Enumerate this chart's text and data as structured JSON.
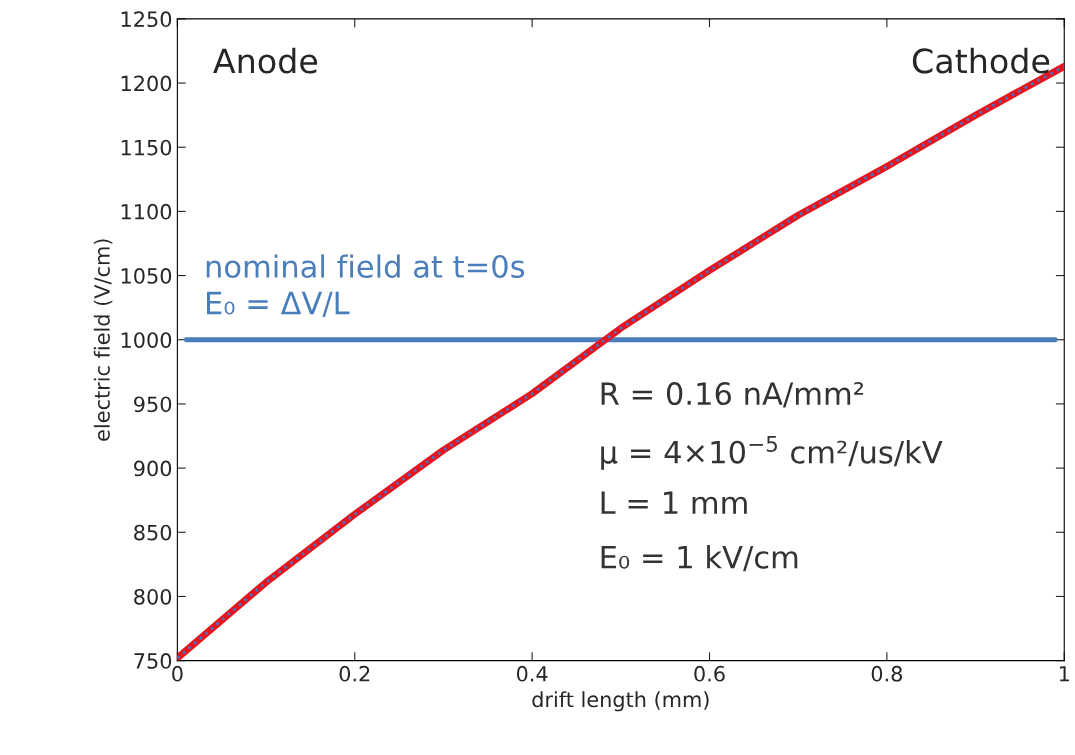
{
  "chart_data": {
    "type": "line",
    "xlabel": "drift length (mm)",
    "ylabel": "electric field (V/cm)",
    "x": [
      0,
      0.1,
      0.2,
      0.3,
      0.4,
      0.5,
      0.6,
      0.7,
      0.8,
      0.9,
      1.0
    ],
    "series": [
      {
        "color": "#e8141b",
        "line_style": "solid",
        "values": [
          752,
          811,
          864,
          914,
          958,
          1009,
          1054,
          1097,
          1135,
          1175,
          1213
        ]
      },
      {
        "color": "#4a6fc4",
        "line_style": "dotted",
        "values": [
          752,
          811,
          864,
          914,
          958,
          1009,
          1054,
          1097,
          1135,
          1175,
          1213
        ]
      }
    ],
    "xlim": [
      0,
      1
    ],
    "ylim": [
      750,
      1250
    ],
    "xticks": [
      0,
      {
        "value": 0.2,
        "label": "0.2"
      },
      {
        "value": 0.4,
        "label": "0.4"
      },
      {
        "value": 0.6,
        "label": "0.6"
      },
      {
        "value": 0.8,
        "label": "0.8"
      },
      1
    ],
    "yticks": [
      750,
      800,
      850,
      900,
      950,
      1000,
      1050,
      1100,
      1150,
      1200,
      1250
    ],
    "ref_lines": [
      {
        "axis": "y",
        "value": 1000,
        "color": "#4a7ebb"
      }
    ],
    "annotations": [
      "nominal field at t=0s\nE₀ = ΔV/L",
      "Anode",
      "Cathode",
      "R = 0.16 nA/mm²",
      "μ = 4×10$^{−5}$ cm²/us/kV",
      "L = 1 mm",
      "E₀ = 1 kV/cm"
    ],
    "grid": false,
    "legend": false
  }
}
